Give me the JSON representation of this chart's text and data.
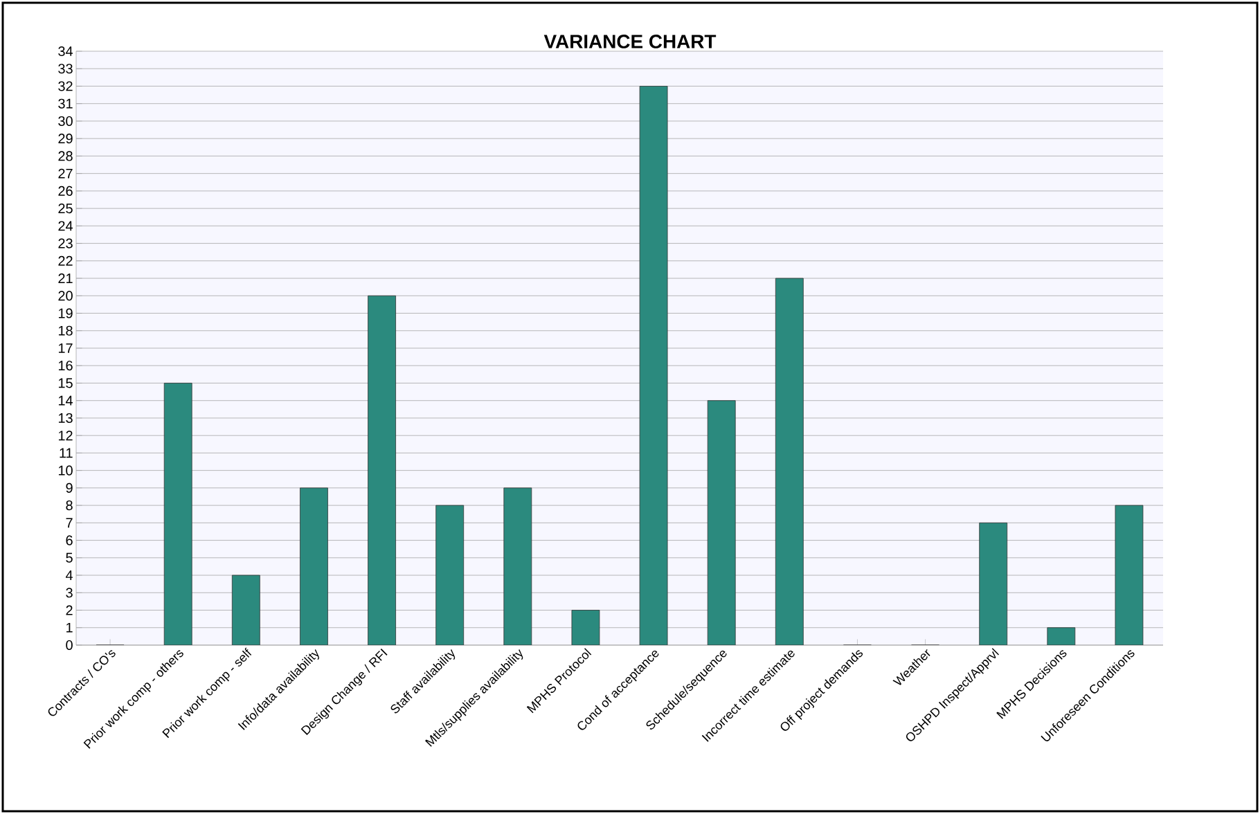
{
  "chart_data": {
    "type": "bar",
    "title": "VARIANCE CHART",
    "categories": [
      "Contracts / CO's",
      "Prior work comp - others",
      "Prior work comp - self",
      "Info/data availability",
      "Design Change / RFI",
      "Staff availability",
      "Mtls/supplies availability",
      "MPHS Protocol",
      "Cond of acceptance",
      "Schedule/sequence",
      "Incorrect time estimate",
      "Off project demands",
      "Weather",
      "OSHPD Inspect/Apprvl",
      "MPHS Decisions",
      "Unforeseen Conditions"
    ],
    "values": [
      0,
      15,
      4,
      9,
      20,
      8,
      9,
      2,
      32,
      14,
      21,
      0,
      0,
      7,
      1,
      8
    ],
    "color": "#2b8a7e",
    "ylim": [
      0,
      34
    ],
    "yticks": [
      0,
      1,
      2,
      3,
      4,
      5,
      6,
      7,
      8,
      9,
      10,
      11,
      12,
      13,
      14,
      15,
      16,
      17,
      18,
      19,
      20,
      21,
      22,
      23,
      24,
      25,
      26,
      27,
      28,
      29,
      30,
      31,
      32,
      33,
      34
    ],
    "grid": "y"
  }
}
